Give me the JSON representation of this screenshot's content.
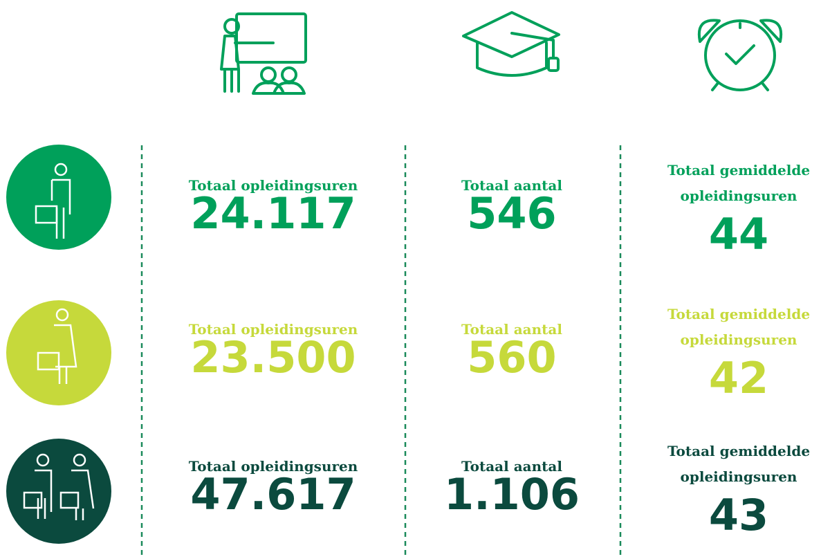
{
  "rows": [
    {
      "hours_label": "Totaal opleidingsuren",
      "hours": "24.117",
      "count_label": "Totaal aantal",
      "count": "546",
      "avg_label": "Totaal gemiddelde opleidingsuren",
      "avg": "44"
    },
    {
      "hours_label": "Totaal opleidingsuren",
      "hours": "23.500",
      "count_label": "Totaal aantal",
      "count": "560",
      "avg_label": "Totaal gemiddelde opleidingsuren",
      "avg": "42"
    },
    {
      "hours_label": "Totaal opleidingsuren",
      "hours": "47.617",
      "count_label": "Totaal aantal",
      "count": "1.106",
      "avg_label": "Totaal gemiddelde opleidingsuren",
      "avg": "43"
    }
  ]
}
